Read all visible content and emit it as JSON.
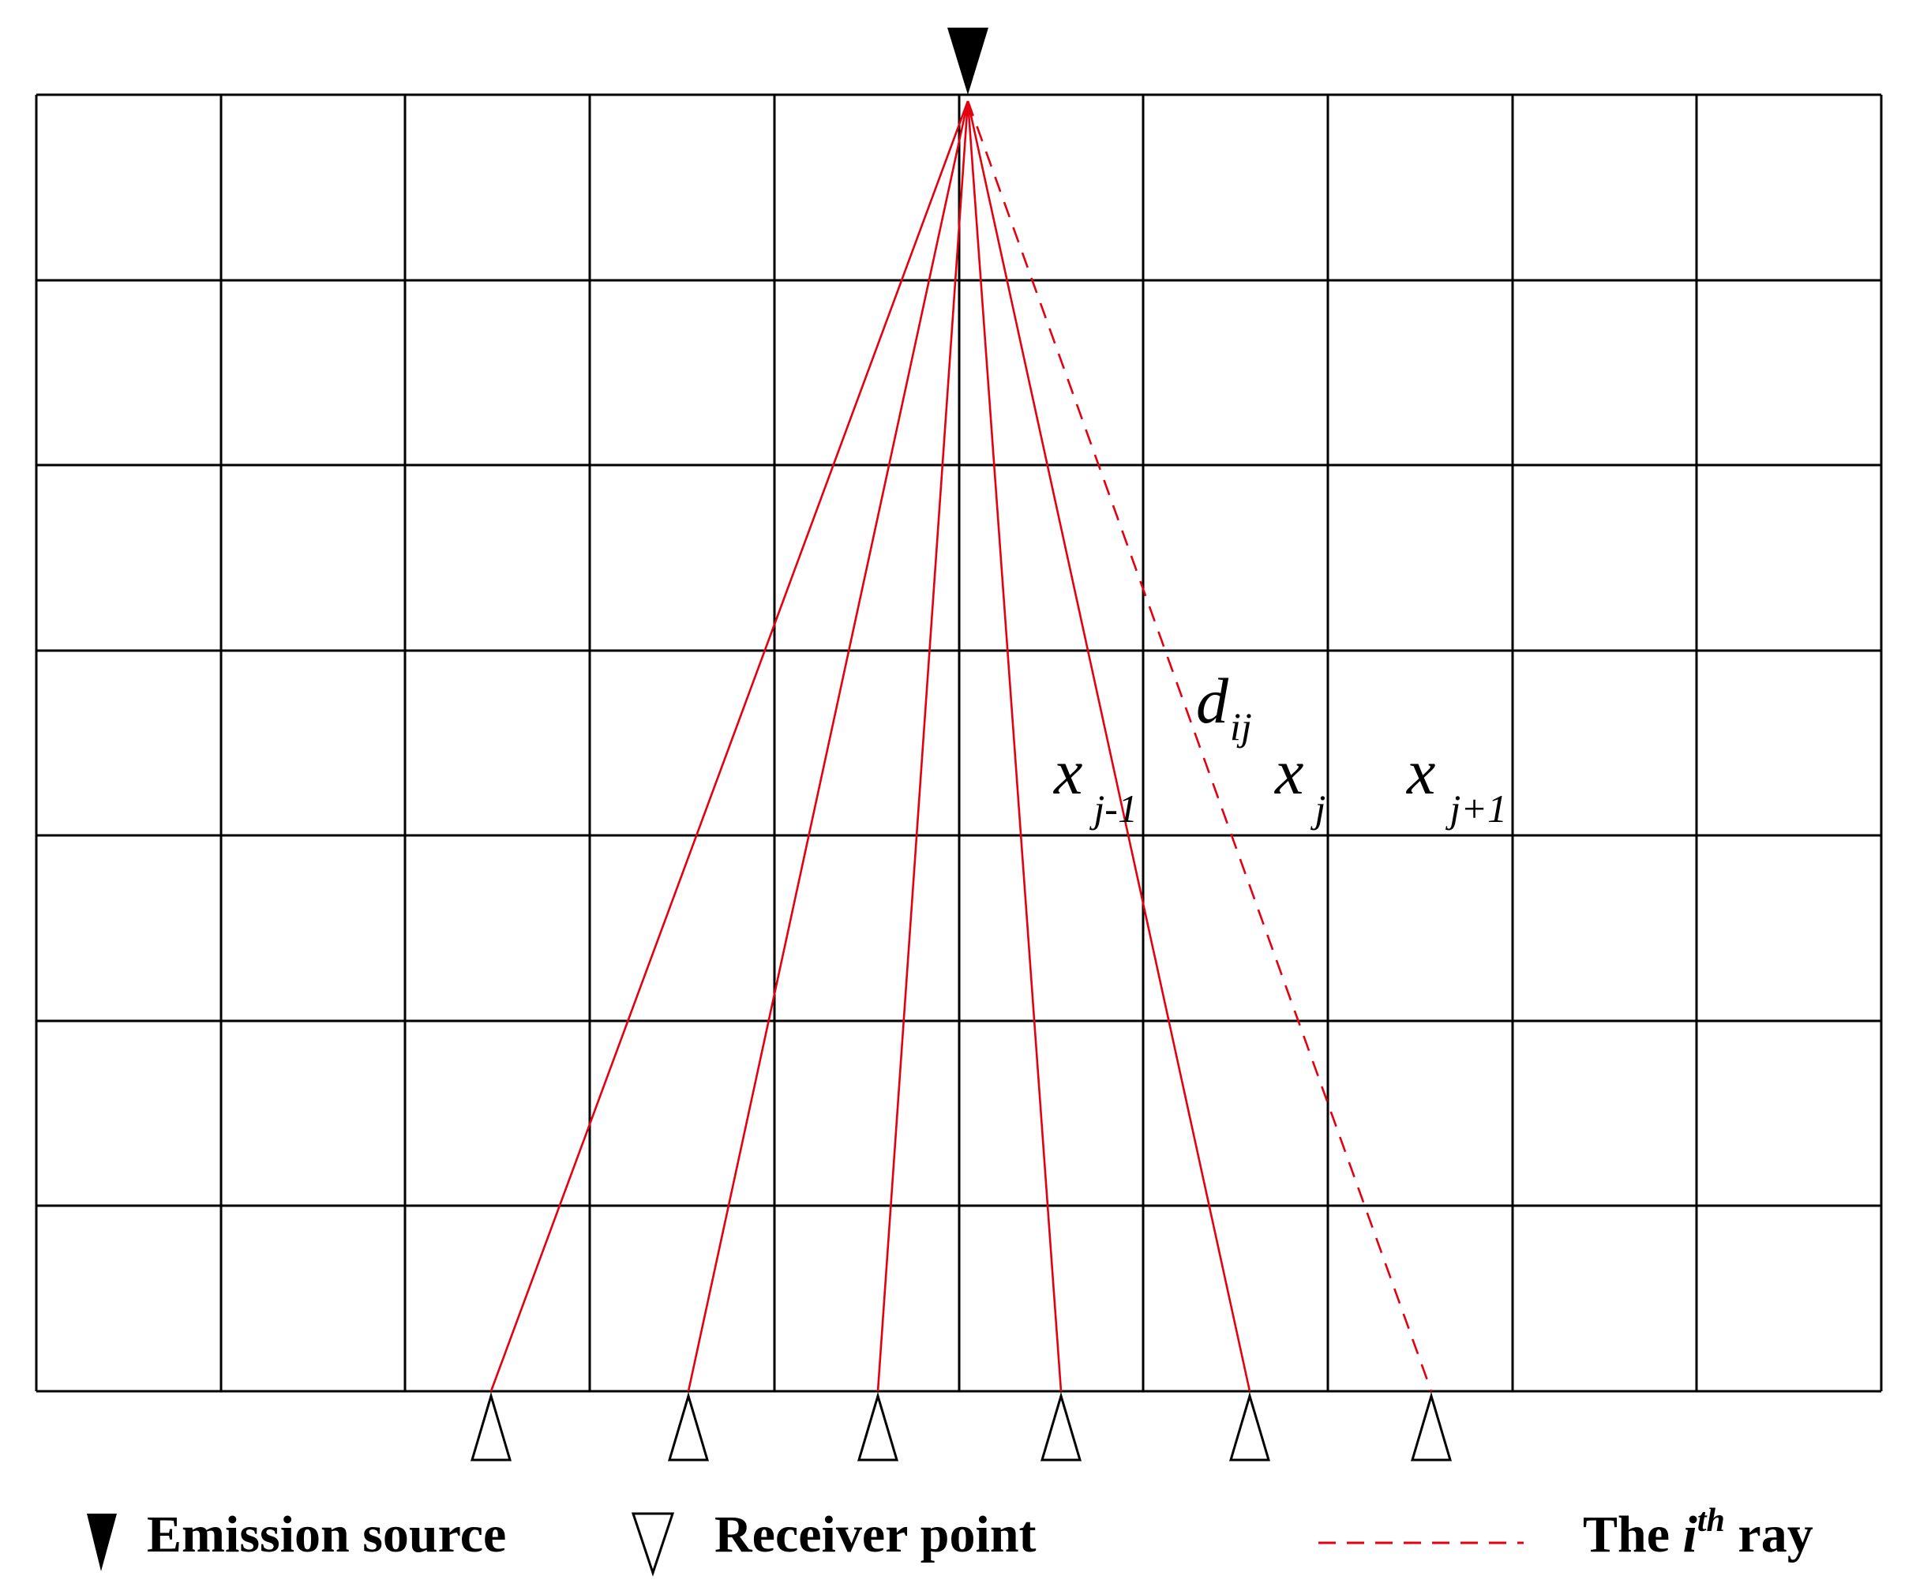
{
  "grid": {
    "columns": 10,
    "rows": 7
  },
  "colors": {
    "grid": "#000000",
    "ray": "#e3000f",
    "source": "#000000",
    "receiver_stroke": "#000000",
    "receiver_fill": "#ffffff"
  },
  "rays": {
    "count": 6,
    "styles": [
      "solid",
      "solid",
      "solid",
      "solid",
      "solid",
      "dashed"
    ]
  },
  "receivers": {
    "count": 6
  },
  "labels": {
    "d_ij": {
      "base": "d",
      "sub": "ij"
    },
    "x_j_minus_1": {
      "base": "x",
      "sub": "j-1"
    },
    "x_j": {
      "base": "x",
      "sub": "j"
    },
    "x_j_plus_1": {
      "base": "x",
      "sub": "j+1"
    }
  },
  "legend": {
    "source_label": "Emission source",
    "receiver_label": "Receiver point",
    "ray_label_prefix": "The ",
    "ray_label_var": "i",
    "ray_label_sup": "th",
    "ray_label_suffix": " ray"
  }
}
